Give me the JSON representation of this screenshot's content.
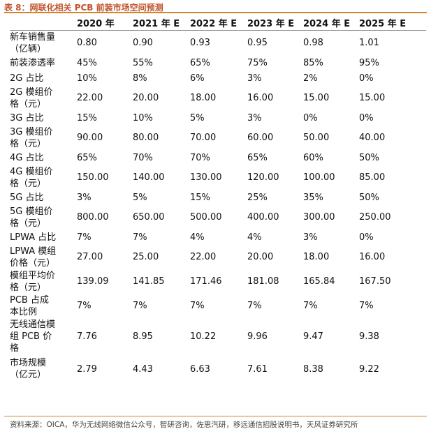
{
  "caption": "表 8：网联化相关 PCB 前装市场空间预测",
  "headers": [
    "",
    "2020 年",
    "2021 年 E",
    "2022 年 E",
    "2023 年 E",
    "2024 年 E",
    "2025 年 E"
  ],
  "rows": [
    {
      "label": [
        "新车销售量",
        "（亿辆）"
      ],
      "values": [
        "0.80",
        "0.90",
        "0.93",
        "0.95",
        "0.98",
        "1.01"
      ]
    },
    {
      "label": [
        "前装渗透率"
      ],
      "values": [
        "45%",
        "55%",
        "65%",
        "75%",
        "85%",
        "95%"
      ]
    },
    {
      "label": [
        "2G 占比"
      ],
      "values": [
        "10%",
        "8%",
        "6%",
        "3%",
        "2%",
        "0%"
      ]
    },
    {
      "label": [
        "2G 模组价",
        "格（元）"
      ],
      "values": [
        "22.00",
        "20.00",
        "18.00",
        "16.00",
        "15.00",
        "15.00"
      ]
    },
    {
      "label": [
        "3G 占比"
      ],
      "values": [
        "15%",
        "10%",
        "5%",
        "3%",
        "0%",
        "0%"
      ]
    },
    {
      "label": [
        "3G 模组价",
        "格（元）"
      ],
      "values": [
        "90.00",
        "80.00",
        "70.00",
        "60.00",
        "50.00",
        "40.00"
      ]
    },
    {
      "label": [
        "4G 占比"
      ],
      "values": [
        "65%",
        "70%",
        "70%",
        "65%",
        "60%",
        "50%"
      ]
    },
    {
      "label": [
        "4G 模组价",
        "格（元）"
      ],
      "values": [
        "150.00",
        "140.00",
        "130.00",
        "120.00",
        "100.00",
        "85.00"
      ]
    },
    {
      "label": [
        "5G 占比"
      ],
      "values": [
        "3%",
        "5%",
        "15%",
        "25%",
        "35%",
        "50%"
      ]
    },
    {
      "label": [
        "5G 模组价",
        "格（元）"
      ],
      "values": [
        "800.00",
        "650.00",
        "500.00",
        "400.00",
        "300.00",
        "250.00"
      ]
    },
    {
      "label": [
        "LPWA 占比"
      ],
      "values": [
        "7%",
        "7%",
        "4%",
        "4%",
        "3%",
        "0%"
      ]
    },
    {
      "label": [
        "LPWA 模组",
        "价格（元）"
      ],
      "values": [
        "27.00",
        "25.00",
        "22.00",
        "20.00",
        "18.00",
        "16.00"
      ]
    },
    {
      "label": [
        "模组平均价",
        "格（元）"
      ],
      "values": [
        "139.09",
        "141.85",
        "171.46",
        "181.08",
        "165.84",
        "167.50"
      ]
    },
    {
      "label": [
        "PCB 占成",
        "本比例"
      ],
      "values": [
        "7%",
        "7%",
        "7%",
        "7%",
        "7%",
        "7%"
      ]
    },
    {
      "label": [
        "无线通信模",
        "组 PCB 价",
        "格"
      ],
      "values": [
        "7.76",
        "8.95",
        "10.22",
        "9.96",
        "9.47",
        "9.38"
      ]
    },
    {
      "label": [
        "市场规模",
        "（亿元）"
      ],
      "values": [
        "2.79",
        "4.43",
        "6.63",
        "7.61",
        "8.38",
        "9.22"
      ]
    }
  ],
  "source": "资料来源：OICA，华为无线网络微信公众号，智研咨询，佐思汽研，移远通信招股说明书，天风证券研究所"
}
